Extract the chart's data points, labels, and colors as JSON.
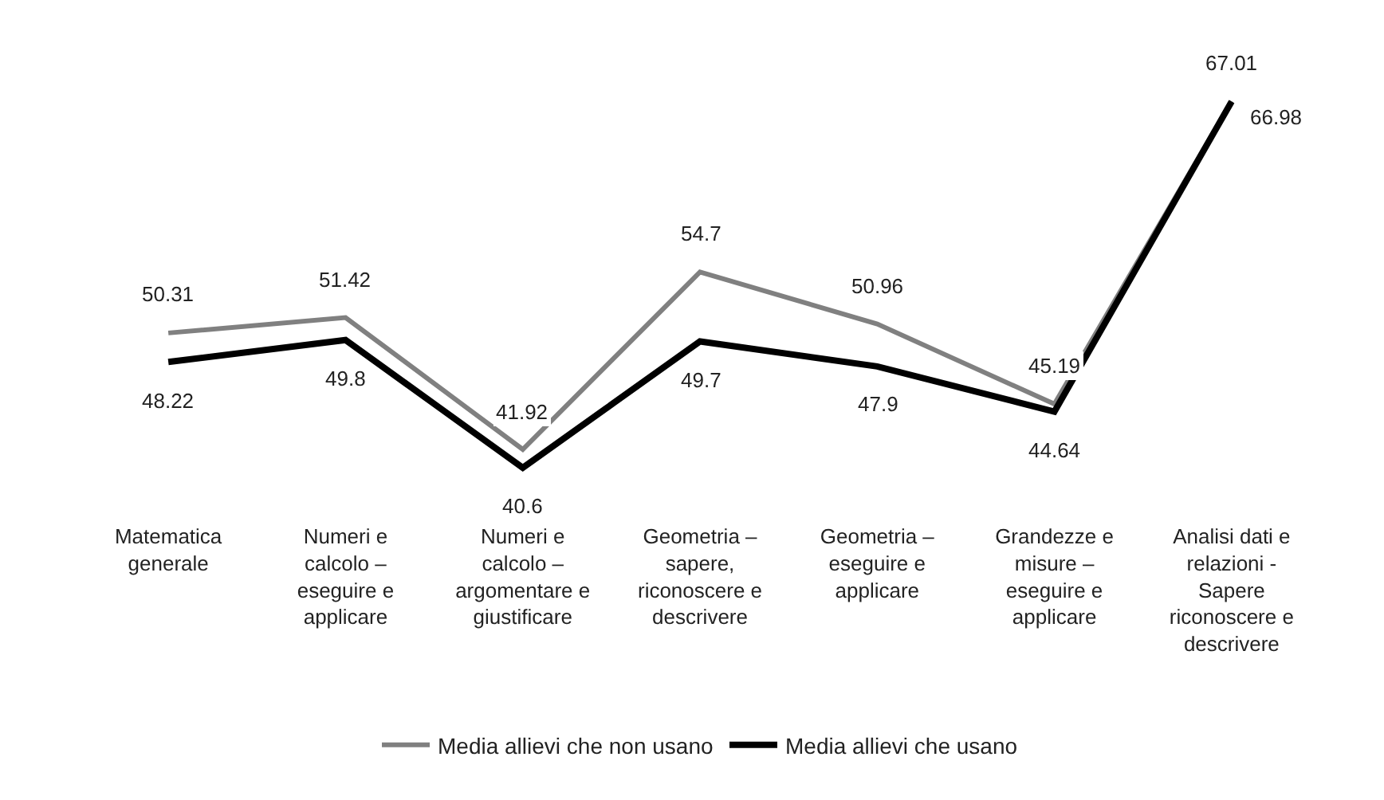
{
  "chart_data": {
    "type": "line",
    "categories": [
      "Matematica generale",
      "Numeri e calcolo – eseguire e applicare",
      "Numeri e calcolo – argomentare e giustificare",
      "Geometria – sapere, riconoscere e descrivere",
      "Geometria – eseguire e applicare",
      "Grandezze e misure – eseguire e applicare",
      "Analisi dati e relazioni - Sapere riconoscere e descrivere"
    ],
    "series": [
      {
        "name": "Media allievi che non usano",
        "color": "#808080",
        "values": [
          50.31,
          51.42,
          41.92,
          54.7,
          50.96,
          45.19,
          67.01
        ]
      },
      {
        "name": "Media allievi che usano",
        "color": "#000000",
        "values": [
          48.22,
          49.8,
          40.6,
          49.7,
          47.9,
          44.64,
          66.98
        ]
      }
    ],
    "data_labels": true,
    "legend": "bottom",
    "marker": "none",
    "line_style": "solid"
  }
}
